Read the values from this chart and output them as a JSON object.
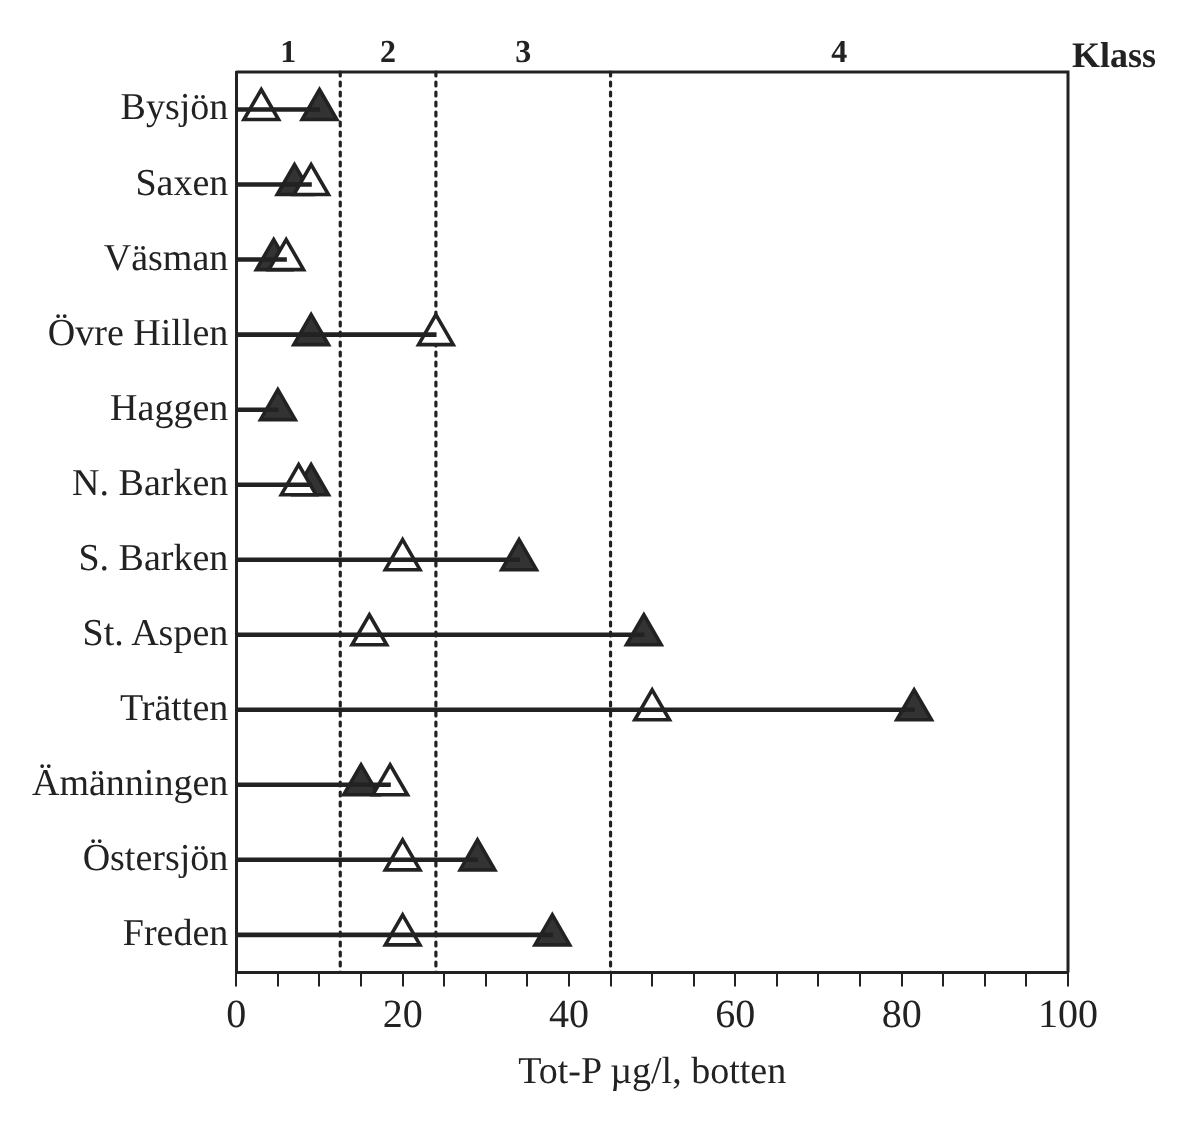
{
  "chart_data": {
    "type": "scatter",
    "orientation": "horizontal",
    "xlabel": "Tot-P µg/l, botten",
    "categories": [
      "Bysjön",
      "Saxen",
      "Väsman",
      "Övre Hillen",
      "Haggen",
      "N. Barken",
      "S. Barken",
      "St. Aspen",
      "Trätten",
      "Ämänningen",
      "Östersjön",
      "Freden"
    ],
    "series": [
      {
        "type": "bar",
        "color": "#222222",
        "values": [
          10,
          9,
          6,
          24,
          5,
          9,
          34,
          49,
          81.5,
          18.5,
          29,
          38
        ]
      },
      {
        "color": "#ffffff",
        "values": [
          3,
          9,
          6,
          24,
          null,
          7.5,
          20,
          16,
          50,
          18.5,
          20,
          20
        ]
      },
      {
        "color": "#333333",
        "values": [
          10,
          7,
          4.5,
          9,
          5,
          9,
          34,
          49,
          81.5,
          15,
          29,
          38
        ]
      }
    ],
    "marker": "triangle",
    "xlim": [
      0,
      100
    ],
    "xticks": [
      0,
      {
        "value": 5,
        "label": null
      },
      {
        "value": 10,
        "label": null
      },
      {
        "value": 15,
        "label": null
      },
      20,
      {
        "value": 25,
        "label": null
      },
      {
        "value": 30,
        "label": null
      },
      {
        "value": 35,
        "label": null
      },
      40,
      {
        "value": 45,
        "label": null
      },
      {
        "value": 50,
        "label": null
      },
      {
        "value": 55,
        "label": null
      },
      60,
      {
        "value": 65,
        "label": null
      },
      {
        "value": 70,
        "label": null
      },
      {
        "value": 75,
        "label": null
      },
      80,
      {
        "value": 85,
        "label": null
      },
      {
        "value": 90,
        "label": null
      },
      {
        "value": 95,
        "label": null
      },
      100
    ],
    "ref_lines": [
      {
        "axis": "x",
        "value": 12.5,
        "line_style": "dotted"
      },
      {
        "axis": "x",
        "value": 24,
        "line_style": "dotted"
      },
      {
        "axis": "x",
        "value": 45,
        "line_style": "dotted"
      }
    ],
    "annotations": [
      "1",
      "2",
      "3",
      "4",
      "Klass"
    ],
    "grid": false,
    "legend": false
  }
}
